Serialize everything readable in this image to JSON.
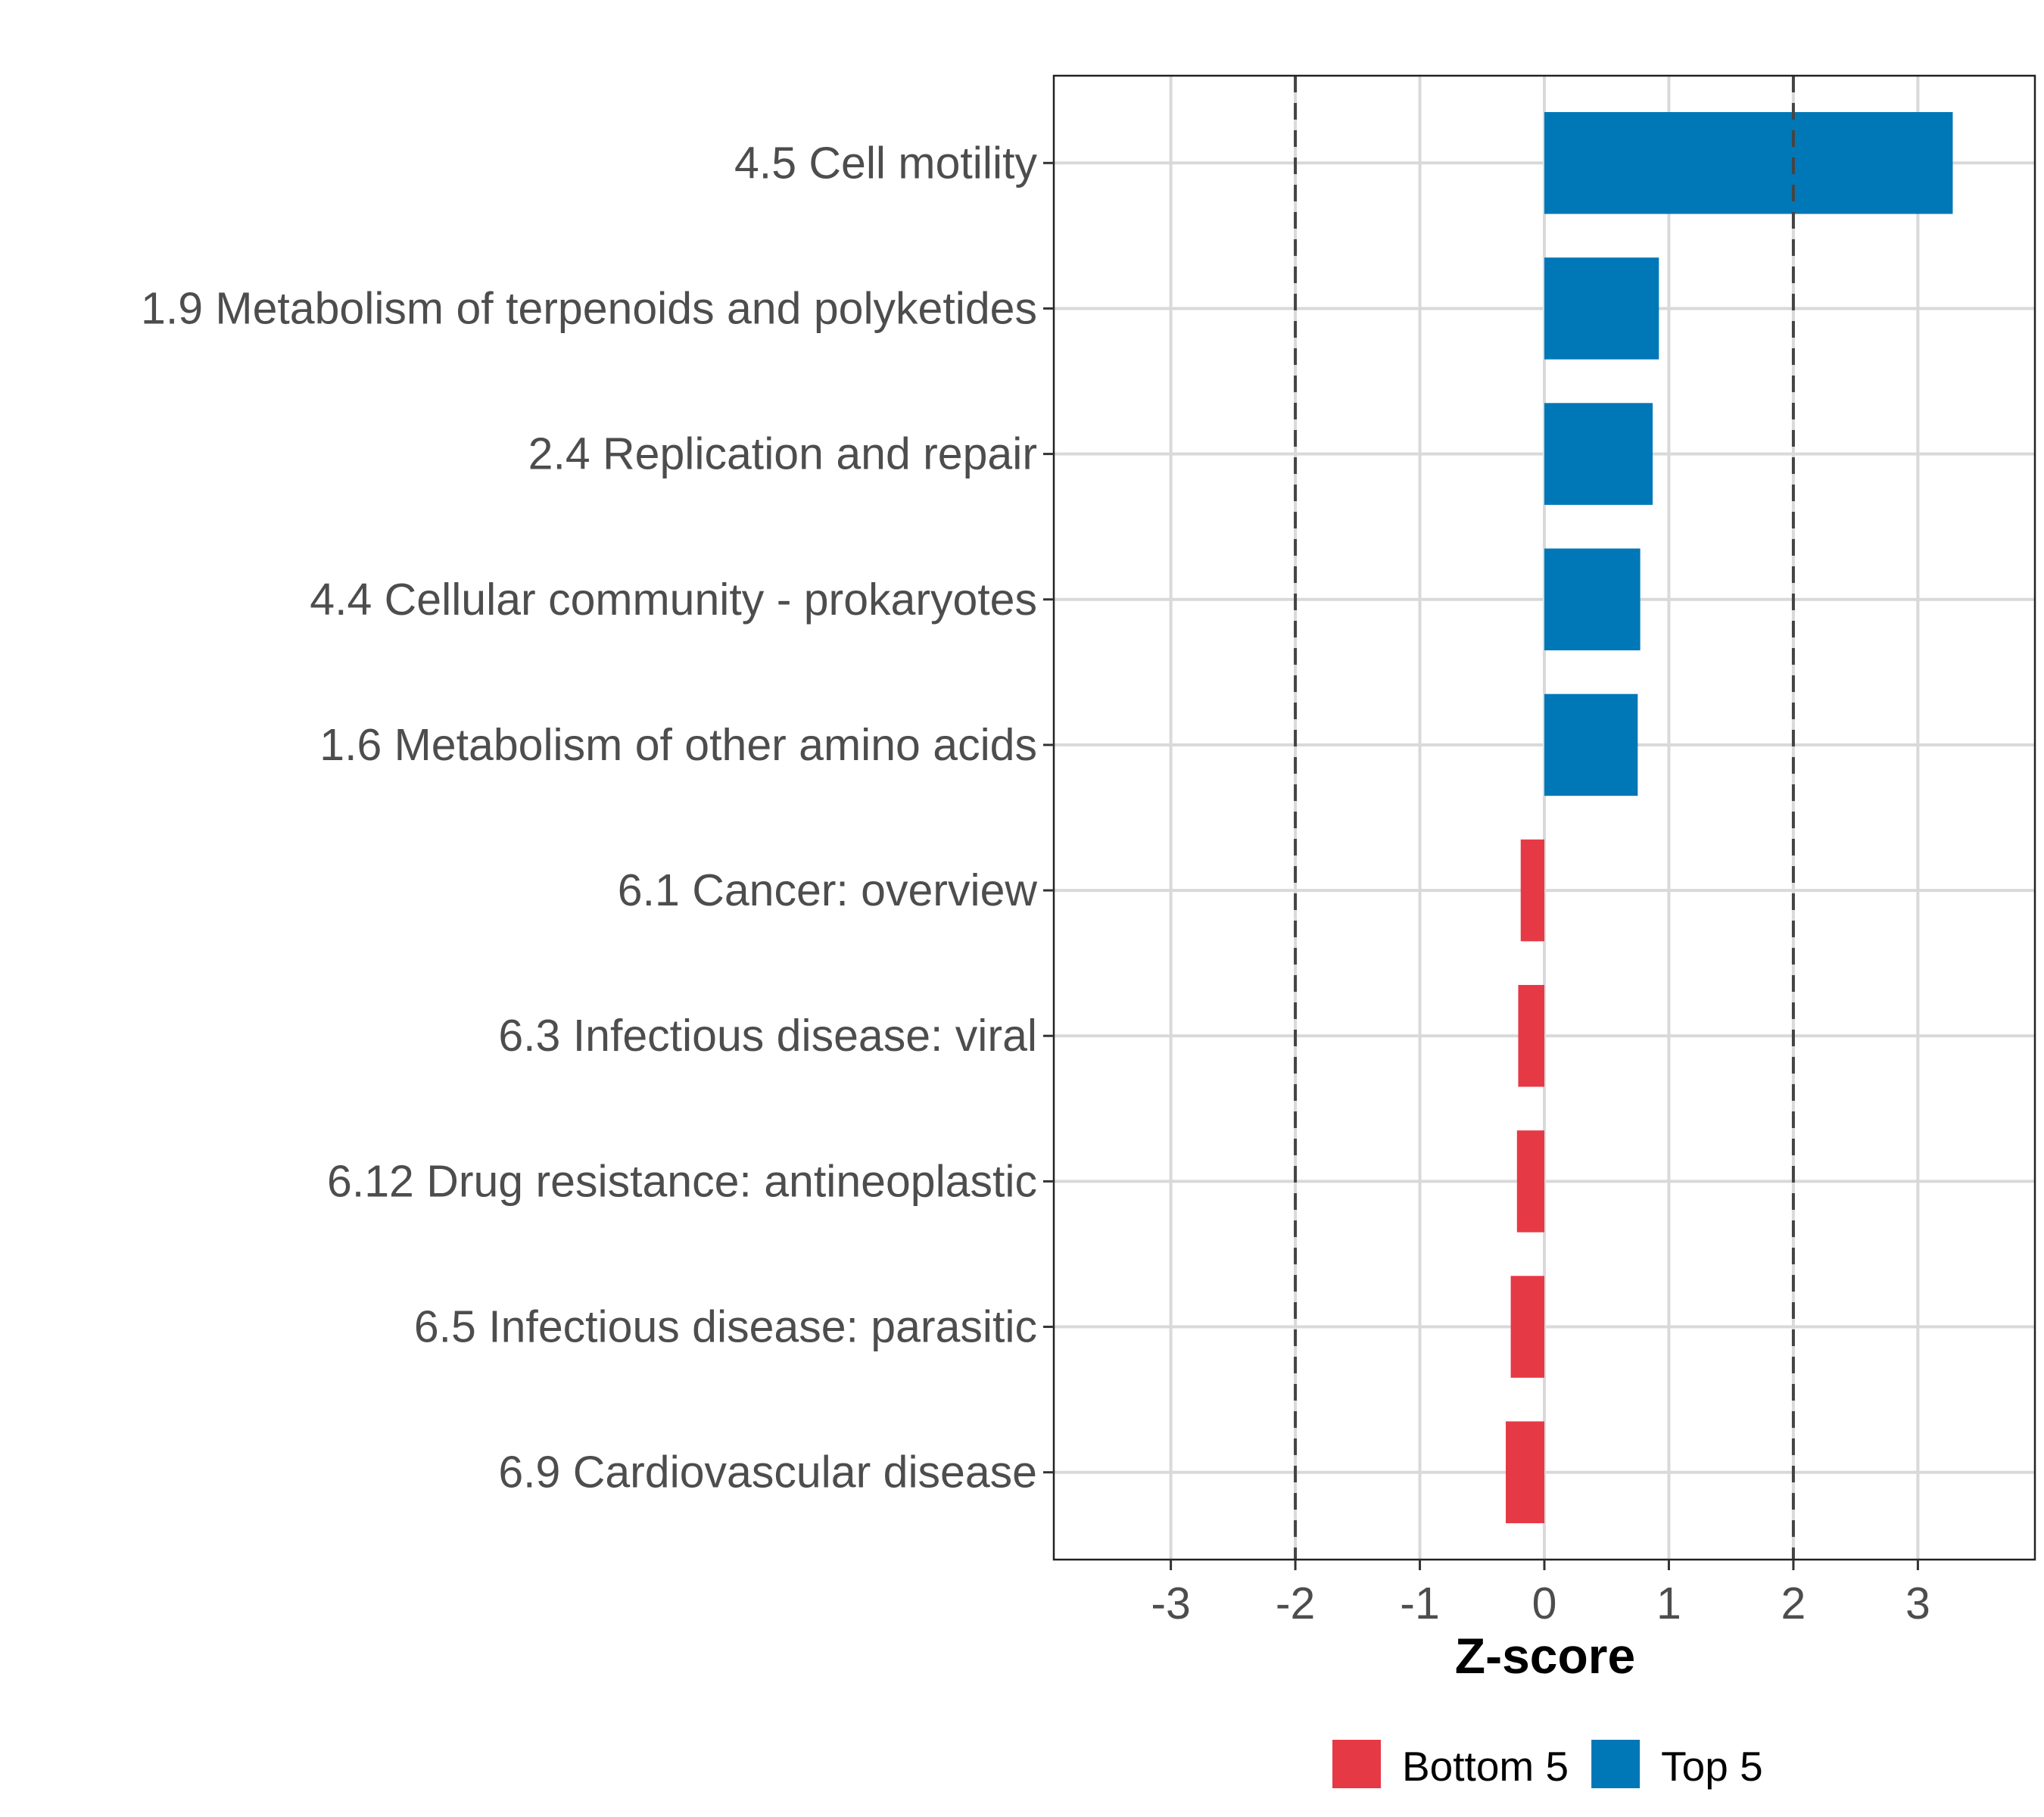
{
  "chart_data": {
    "type": "bar",
    "orientation": "horizontal",
    "title": "",
    "xlabel": "Z-score",
    "ylabel": "",
    "xlim": [
      -3.94,
      3.94
    ],
    "xticks": [
      -3,
      -2,
      -1,
      0,
      1,
      2,
      3
    ],
    "xtick_labels": [
      "-3",
      "-2",
      "-1",
      "0",
      "1",
      "2",
      "3"
    ],
    "reference_lines": [
      -2,
      2
    ],
    "grid": true,
    "legend_position": "bottom",
    "categories": [
      "4.5 Cell motility",
      "1.9 Metabolism of terpenoids and polyketides",
      "2.4 Replication and repair",
      "4.4 Cellular community - prokaryotes",
      "1.6 Metabolism of other amino acids",
      "6.1 Cancer: overview",
      "6.3 Infectious disease: viral",
      "6.12 Drug resistance: antineoplastic",
      "6.5 Infectious disease: parasitic",
      "6.9 Cardiovascular disease"
    ],
    "values": [
      3.28,
      0.92,
      0.87,
      0.77,
      0.75,
      -0.19,
      -0.21,
      -0.22,
      -0.27,
      -0.31
    ],
    "groups": [
      "Top 5",
      "Top 5",
      "Top 5",
      "Top 5",
      "Top 5",
      "Bottom 5",
      "Bottom 5",
      "Bottom 5",
      "Bottom 5",
      "Bottom 5"
    ],
    "legend": [
      {
        "name": "Bottom 5",
        "color": "#E63946"
      },
      {
        "name": "Top 5",
        "color": "#0077B6"
      }
    ]
  }
}
